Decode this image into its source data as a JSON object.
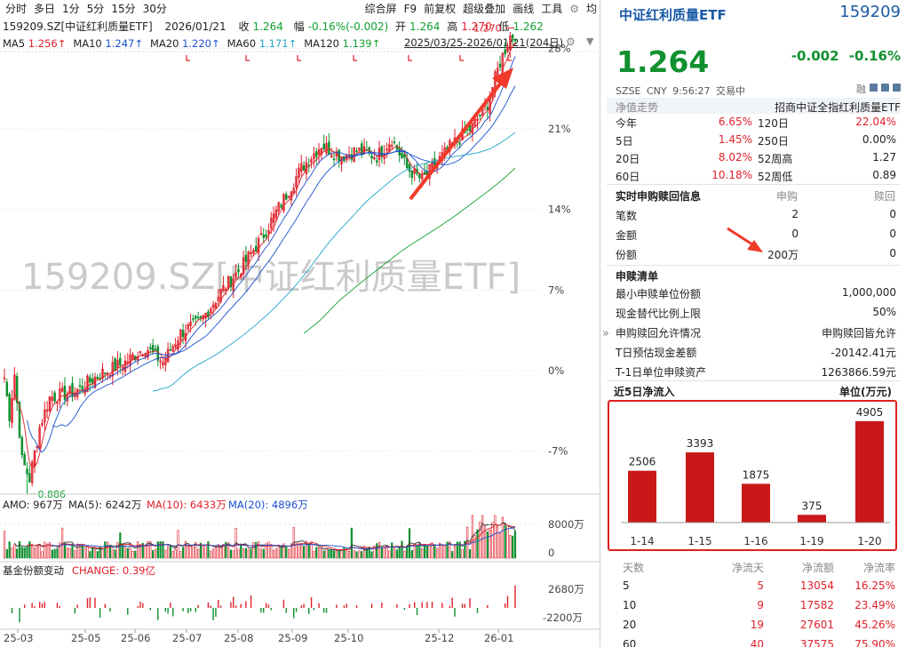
{
  "toolbar": {
    "left": [
      "分时",
      "多日",
      "1分",
      "5分",
      "15分",
      "30分"
    ],
    "right": [
      "综合屏",
      "F9",
      "前复权",
      "超级叠加",
      "画线",
      "工具"
    ],
    "gear": "gear-icon",
    "extra": "均"
  },
  "quote": {
    "code": "159209.SZ[中证红利质量ETF]",
    "date": "2026/01/21",
    "close_label": "收",
    "close": "1.264",
    "chg_label": "幅",
    "chg": "-0.16%(-0.002)",
    "open_label": "开",
    "open": "1.264",
    "high_label": "高",
    "high": "1.270",
    "low_label": "低",
    "low": "1.262"
  },
  "ma": [
    {
      "name": "MA5",
      "value": "1.256↑",
      "color": "#e0202a"
    },
    {
      "name": "MA10",
      "value": "1.247↑",
      "color": "#1a4fd0"
    },
    {
      "name": "MA20",
      "value": "1.220↑",
      "color": "#1a4fd0"
    },
    {
      "name": "MA60",
      "value": "1.171↑",
      "color": "#22a8c8"
    },
    {
      "name": "MA120",
      "value": "1.139↑",
      "color": "#10a030"
    }
  ],
  "range": "2025/03/25-2026/01/21(204日)",
  "watermark": "159209.SZ[中证红利质量ETF]",
  "price_axis": [
    "28%",
    "21%",
    "14%",
    "7%",
    "0%",
    "-7%"
  ],
  "price_marks": {
    "high": "1.270",
    "low": "0.886"
  },
  "amo": {
    "label": "AMO: 967万",
    "ma5": "MA(5): 6242万",
    "ma10": "MA(10): 6433万",
    "ma20": "MA(20): 4896万",
    "axis": [
      "8000万",
      "0"
    ]
  },
  "change": {
    "label": "基金份额变动",
    "value": "CHANGE: 0.39亿",
    "axis": [
      "2680万",
      "-2200万"
    ]
  },
  "xaxis": [
    "25-03",
    "25-05",
    "25-06",
    "25-07",
    "25-08",
    "25-09",
    "25-10",
    "25-12",
    "26-01"
  ],
  "right": {
    "title": "中证红利质量ETF",
    "code": "159209",
    "price": "1.264",
    "chg": "-0.002",
    "pct": "-0.16%",
    "market": "SZSE CNY 9:56:27 交易中",
    "icon_label": "融",
    "nav_label": "净值走势",
    "tracking": "招商中证全指红利质量ETF",
    "perf": [
      {
        "l1": "今年",
        "v1": "6.65%",
        "l2": "120日",
        "v2": "22.04%",
        "c2": "red"
      },
      {
        "l1": "5日",
        "v1": "1.45%",
        "l2": "250日",
        "v2": "0.00%",
        "c2": "dark"
      },
      {
        "l1": "20日",
        "v1": "8.02%",
        "l2": "52周高",
        "v2": "1.27",
        "c2": "dark"
      },
      {
        "l1": "60日",
        "v1": "10.18%",
        "l2": "52周低",
        "v2": "0.89",
        "c2": "dark"
      }
    ],
    "sub_header": {
      "label": "实时申购赎回信息",
      "c1": "申购",
      "c2": "赎回"
    },
    "sub_rows": [
      {
        "l": "笔数",
        "a": "2",
        "b": "0"
      },
      {
        "l": "金额",
        "a": "0",
        "b": "0"
      },
      {
        "l": "份额",
        "a": "200万",
        "b": "0"
      }
    ],
    "list_header": "申赎清单",
    "list_rows": [
      {
        "l": "最小申赎单位份额",
        "v": "1,000,000"
      },
      {
        "l": "现金替代比例上限",
        "v": "50%"
      },
      {
        "l": "申购赎回允许情况",
        "v": "申购赎回皆允许"
      },
      {
        "l": "T日预估现金差额",
        "v": "-20142.41元"
      },
      {
        "l": "T-1日单位申赎资产",
        "v": "1263866.59元"
      }
    ],
    "collapse": "»",
    "net_title": "近5日净流入",
    "net_unit": "单位(万元)",
    "net_bars": [
      {
        "d": "1-14",
        "v": 2506
      },
      {
        "d": "1-15",
        "v": 3393
      },
      {
        "d": "1-16",
        "v": 1875
      },
      {
        "d": "1-19",
        "v": 375
      },
      {
        "d": "1-20",
        "v": 4905
      }
    ],
    "tbl_header": [
      "天数",
      "净流天",
      "净流额",
      "净流率"
    ],
    "tbl_rows": [
      [
        "5",
        "5",
        "13054",
        "16.25%"
      ],
      [
        "10",
        "9",
        "17582",
        "23.49%"
      ],
      [
        "20",
        "19",
        "27601",
        "45.26%"
      ],
      [
        "60",
        "40",
        "37575",
        "75.90%"
      ]
    ]
  }
}
